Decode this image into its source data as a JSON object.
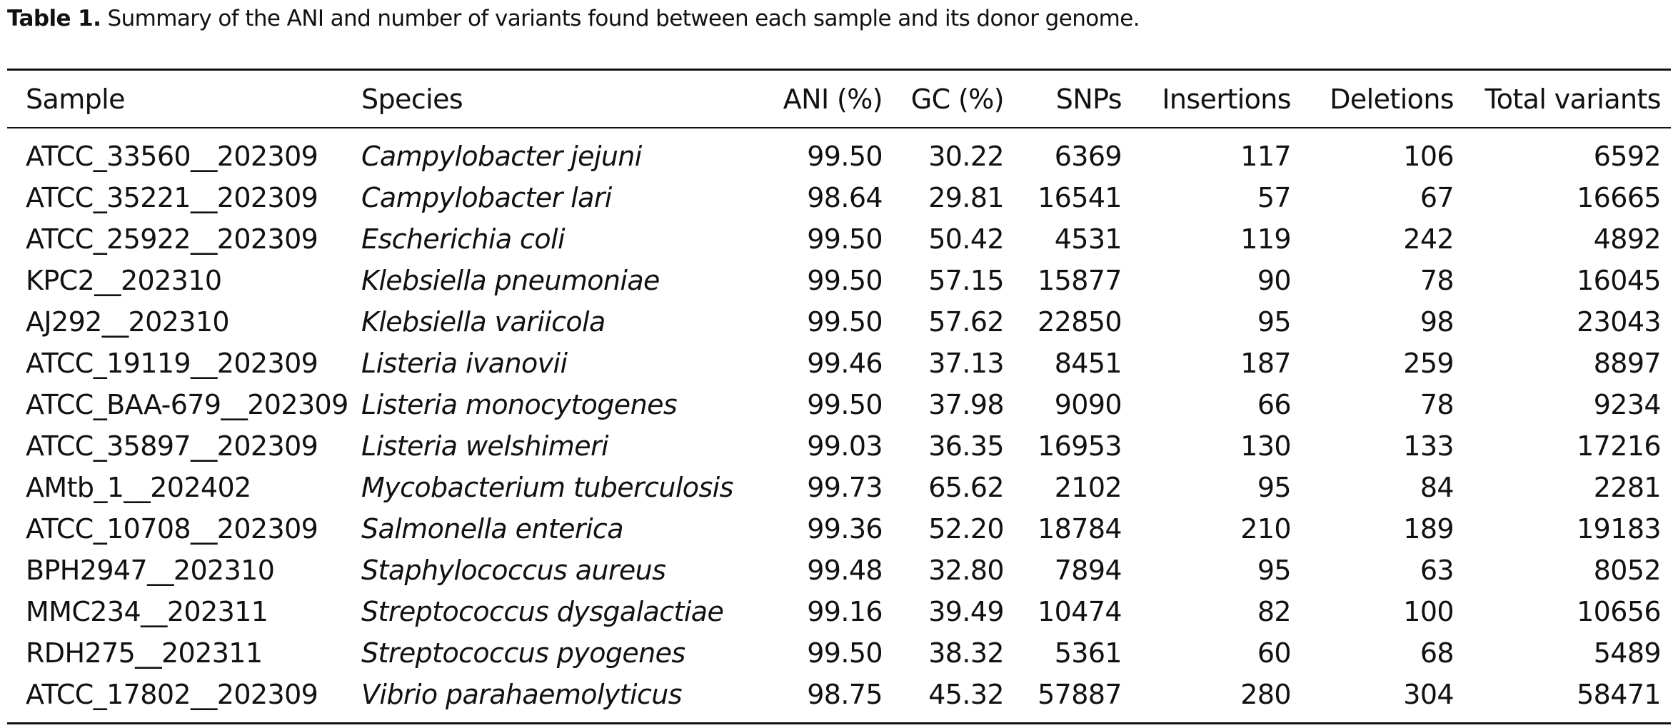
{
  "caption": {
    "label": "Table 1.",
    "text": " Summary of the ANI and number of variants found between each sample and its donor genome."
  },
  "table": {
    "headers": {
      "sample": "Sample",
      "species": "Species",
      "ani": "ANI (%)",
      "gc": "GC (%)",
      "snps": "SNPs",
      "insertions": "Insertions",
      "deletions": "Deletions",
      "total": "Total variants"
    },
    "rows": [
      {
        "sample": "ATCC_33560__202309",
        "species": "Campylobacter jejuni",
        "ani": "99.50",
        "gc": "30.22",
        "snps": "6369",
        "insertions": "117",
        "deletions": "106",
        "total": "6592"
      },
      {
        "sample": "ATCC_35221__202309",
        "species": "Campylobacter lari",
        "ani": "98.64",
        "gc": "29.81",
        "snps": "16541",
        "insertions": "57",
        "deletions": "67",
        "total": "16665"
      },
      {
        "sample": "ATCC_25922__202309",
        "species": "Escherichia coli",
        "ani": "99.50",
        "gc": "50.42",
        "snps": "4531",
        "insertions": "119",
        "deletions": "242",
        "total": "4892"
      },
      {
        "sample": "KPC2__202310",
        "species": "Klebsiella pneumoniae",
        "ani": "99.50",
        "gc": "57.15",
        "snps": "15877",
        "insertions": "90",
        "deletions": "78",
        "total": "16045"
      },
      {
        "sample": "AJ292__202310",
        "species": "Klebsiella variicola",
        "ani": "99.50",
        "gc": "57.62",
        "snps": "22850",
        "insertions": "95",
        "deletions": "98",
        "total": "23043"
      },
      {
        "sample": "ATCC_19119__202309",
        "species": "Listeria ivanovii",
        "ani": "99.46",
        "gc": "37.13",
        "snps": "8451",
        "insertions": "187",
        "deletions": "259",
        "total": "8897"
      },
      {
        "sample": "ATCC_BAA-679__202309",
        "species": "Listeria monocytogenes",
        "ani": "99.50",
        "gc": "37.98",
        "snps": "9090",
        "insertions": "66",
        "deletions": "78",
        "total": "9234"
      },
      {
        "sample": "ATCC_35897__202309",
        "species": "Listeria welshimeri",
        "ani": "99.03",
        "gc": "36.35",
        "snps": "16953",
        "insertions": "130",
        "deletions": "133",
        "total": "17216"
      },
      {
        "sample": "AMtb_1__202402",
        "species": "Mycobacterium tuberculosis",
        "ani": "99.73",
        "gc": "65.62",
        "snps": "2102",
        "insertions": "95",
        "deletions": "84",
        "total": "2281"
      },
      {
        "sample": "ATCC_10708__202309",
        "species": "Salmonella enterica",
        "ani": "99.36",
        "gc": "52.20",
        "snps": "18784",
        "insertions": "210",
        "deletions": "189",
        "total": "19183"
      },
      {
        "sample": "BPH2947__202310",
        "species": "Staphylococcus aureus",
        "ani": "99.48",
        "gc": "32.80",
        "snps": "7894",
        "insertions": "95",
        "deletions": "63",
        "total": "8052"
      },
      {
        "sample": "MMC234__202311",
        "species": "Streptococcus dysgalactiae",
        "ani": "99.16",
        "gc": "39.49",
        "snps": "10474",
        "insertions": "82",
        "deletions": "100",
        "total": "10656"
      },
      {
        "sample": "RDH275__202311",
        "species": "Streptococcus pyogenes",
        "ani": "99.50",
        "gc": "38.32",
        "snps": "5361",
        "insertions": "60",
        "deletions": "68",
        "total": "5489"
      },
      {
        "sample": "ATCC_17802__202309",
        "species": "Vibrio parahaemolyticus",
        "ani": "98.75",
        "gc": "45.32",
        "snps": "57887",
        "insertions": "280",
        "deletions": "304",
        "total": "58471"
      }
    ]
  }
}
